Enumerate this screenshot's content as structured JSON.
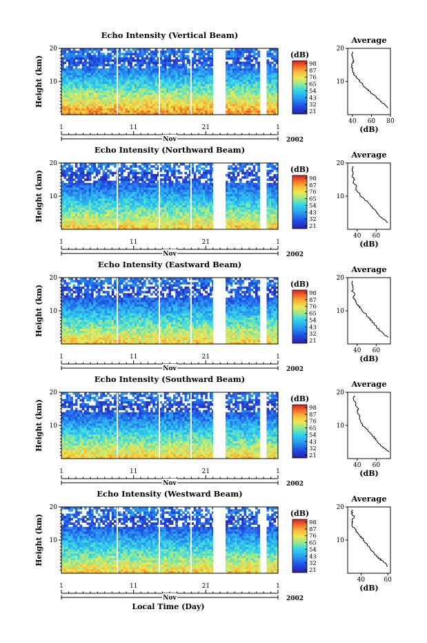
{
  "chart_data": [
    {
      "type": "heatmap",
      "title": "Echo Intensity (Vertical Beam)",
      "ylabel": "Height (km)",
      "x_ticks": [
        "1",
        "11",
        "21",
        "1"
      ],
      "month": "Nov",
      "year": "2002",
      "ylim": [
        0,
        20
      ],
      "y_ticks": [
        "20",
        "10"
      ],
      "colorbar_label": "(dB)",
      "colorbar_ticks": [
        "98",
        "87",
        "76",
        "65",
        "54",
        "43",
        "32",
        "21"
      ],
      "average": {
        "title": "Average",
        "xlabel": "(dB)",
        "x_ticks": [
          "40",
          "60",
          "80"
        ],
        "xlim": [
          35,
          80
        ],
        "y_ticks": [
          "20",
          "10"
        ],
        "heights": [
          2,
          3,
          4,
          5,
          6,
          7,
          8,
          9,
          10,
          11,
          12,
          13,
          14,
          15,
          16,
          17,
          18,
          19
        ],
        "db": [
          78,
          74,
          70,
          66,
          62,
          58,
          54,
          51,
          48,
          45,
          42,
          41,
          40,
          39,
          41,
          40,
          39,
          40
        ]
      }
    },
    {
      "type": "heatmap",
      "title": "Echo Intensity (Northward Beam)",
      "ylabel": "Height (km)",
      "x_ticks": [
        "1",
        "11",
        "21",
        "1"
      ],
      "month": "Nov",
      "year": "2002",
      "ylim": [
        0,
        20
      ],
      "y_ticks": [
        "20",
        "10"
      ],
      "colorbar_label": "(dB)",
      "colorbar_ticks": [
        "98",
        "87",
        "76",
        "65",
        "54",
        "43",
        "32",
        "21"
      ],
      "average": {
        "title": "Average",
        "xlabel": "(dB)",
        "x_ticks": [
          "40",
          "60"
        ],
        "xlim": [
          30,
          75
        ],
        "y_ticks": [
          "20",
          "10"
        ],
        "heights": [
          2,
          3,
          4,
          5,
          6,
          7,
          8,
          9,
          10,
          11,
          12,
          13,
          14,
          15,
          16,
          17,
          18,
          19
        ],
        "db": [
          72,
          68,
          64,
          61,
          58,
          55,
          52,
          48,
          44,
          42,
          38,
          40,
          36,
          37,
          35,
          36,
          35,
          35
        ]
      }
    },
    {
      "type": "heatmap",
      "title": "Echo Intensity (Eastward Beam)",
      "ylabel": "Height (km)",
      "x_ticks": [
        "1",
        "11",
        "21",
        "1"
      ],
      "month": "Nov",
      "year": "2002",
      "ylim": [
        0,
        20
      ],
      "y_ticks": [
        "20",
        "10"
      ],
      "colorbar_label": "(dB)",
      "colorbar_ticks": [
        "98",
        "87",
        "76",
        "65",
        "54",
        "43",
        "32",
        "21"
      ],
      "average": {
        "title": "Average",
        "xlabel": "(dB)",
        "x_ticks": [
          "40",
          "60"
        ],
        "xlim": [
          30,
          75
        ],
        "y_ticks": [
          "20",
          "10"
        ],
        "heights": [
          2,
          3,
          4,
          5,
          6,
          7,
          8,
          9,
          10,
          11,
          12,
          13,
          14,
          15,
          16,
          17,
          18,
          19
        ],
        "db": [
          72,
          68,
          64,
          61,
          58,
          55,
          52,
          49,
          45,
          43,
          40,
          38,
          36,
          37,
          35,
          36,
          34,
          35
        ]
      }
    },
    {
      "type": "heatmap",
      "title": "Echo Intensity (Southward Beam)",
      "ylabel": "Height (km)",
      "x_ticks": [
        "1",
        "11",
        "21",
        "1"
      ],
      "month": "Nov",
      "year": "2002",
      "ylim": [
        0,
        20
      ],
      "y_ticks": [
        "20",
        "10"
      ],
      "colorbar_label": "(dB)",
      "colorbar_ticks": [
        "98",
        "87",
        "76",
        "65",
        "54",
        "43",
        "32",
        "21"
      ],
      "average": {
        "title": "Average",
        "xlabel": "(dB)",
        "x_ticks": [
          "40",
          "60"
        ],
        "xlim": [
          30,
          75
        ],
        "y_ticks": [
          "20",
          "10"
        ],
        "heights": [
          2,
          3,
          4,
          5,
          6,
          7,
          8,
          9,
          10,
          11,
          12,
          13,
          14,
          15,
          16,
          17,
          18,
          19
        ],
        "db": [
          73,
          69,
          65,
          62,
          59,
          56,
          53,
          50,
          46,
          44,
          43,
          42,
          40,
          41,
          38,
          38,
          36,
          37
        ]
      }
    },
    {
      "type": "heatmap",
      "title": "Echo Intensity (Westward Beam)",
      "ylabel": "Height (km)",
      "xlabel": "Local Time (Day)",
      "x_ticks": [
        "1",
        "11",
        "21",
        "1"
      ],
      "month": "Nov",
      "year": "2002",
      "ylim": [
        0,
        20
      ],
      "y_ticks": [
        "20",
        "10"
      ],
      "colorbar_label": "(dB)",
      "colorbar_ticks": [
        "98",
        "87",
        "76",
        "65",
        "54",
        "43",
        "32",
        "21"
      ],
      "average": {
        "title": "Average",
        "xlabel": "(dB)",
        "x_ticks": [
          "40",
          "60"
        ],
        "xlim": [
          30,
          62
        ],
        "y_ticks": [
          "20",
          "10"
        ],
        "heights": [
          2,
          3,
          4,
          5,
          6,
          7,
          8,
          9,
          10,
          11,
          12,
          13,
          14,
          15,
          16,
          17,
          18,
          19
        ],
        "db": [
          60,
          58,
          55,
          52,
          50,
          48,
          46,
          44,
          42,
          40,
          38,
          36,
          34,
          33,
          34,
          35,
          33,
          34
        ]
      }
    }
  ]
}
